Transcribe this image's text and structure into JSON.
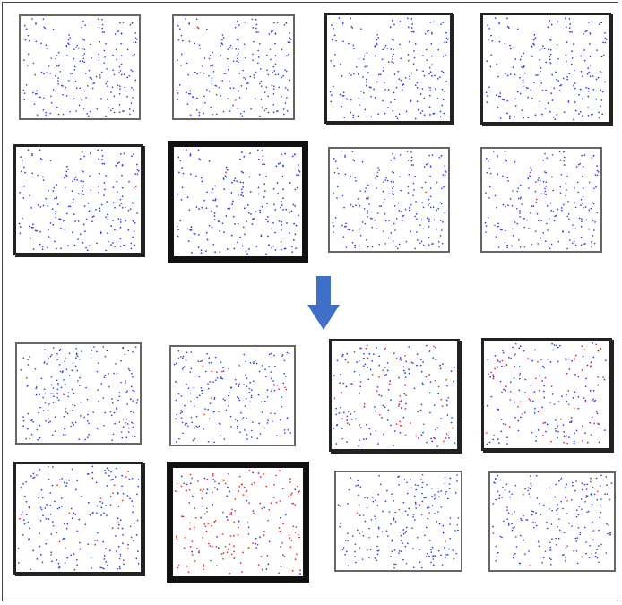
{
  "colors": {
    "normal_dot": "#2f3ff0",
    "infected_dot": "#f03030",
    "recovered_dot": "#22aa44",
    "arrow": "#3f6fc6",
    "panel_border": "#555555",
    "frame_border": "#444444"
  },
  "icons": {
    "transition": "down-arrow-icon"
  },
  "before_grid": {
    "rows": [
      [
        {
          "frame": "plain",
          "infected_fraction": 0.01
        },
        {
          "frame": "plain",
          "infected_fraction": 0.01
        },
        {
          "frame": "thick",
          "infected_fraction": 0.01
        },
        {
          "frame": "thick",
          "infected_fraction": 0.01
        }
      ],
      [
        {
          "frame": "thick",
          "infected_fraction": 0.01
        },
        {
          "frame": "heavy",
          "infected_fraction": 0.01
        },
        {
          "frame": "plain",
          "infected_fraction": 0.01
        },
        {
          "frame": "plain",
          "infected_fraction": 0.01
        }
      ]
    ]
  },
  "after_grid": {
    "rows": [
      [
        {
          "frame": "plain",
          "infected_fraction": 0.05
        },
        {
          "frame": "plain",
          "infected_fraction": 0.05
        },
        {
          "frame": "thick",
          "infected_fraction": 0.25
        },
        {
          "frame": "thick",
          "infected_fraction": 0.25
        }
      ],
      [
        {
          "frame": "thick",
          "infected_fraction": 0.15
        },
        {
          "frame": "heavy",
          "infected_fraction": 0.75
        },
        {
          "frame": "plain",
          "infected_fraction": 0.05
        },
        {
          "frame": "plain",
          "infected_fraction": 0.03
        }
      ]
    ]
  }
}
